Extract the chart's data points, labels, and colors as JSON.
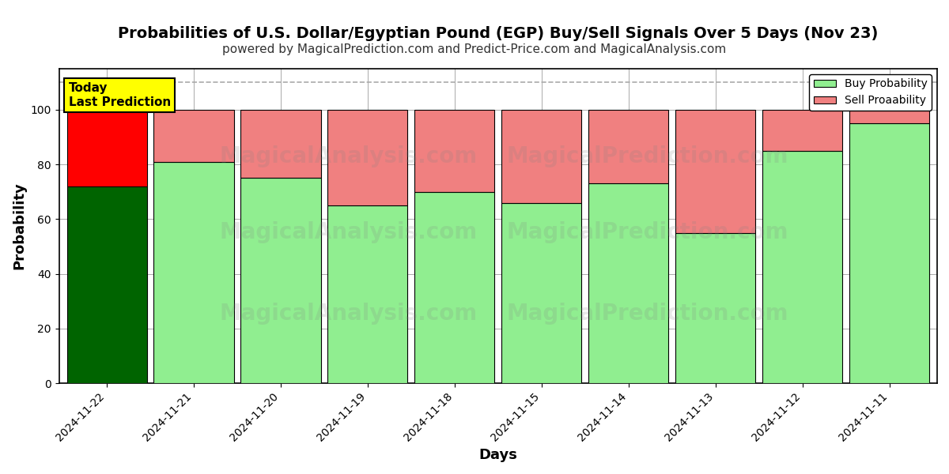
{
  "title": "Probabilities of U.S. Dollar/Egyptian Pound (EGP) Buy/Sell Signals Over 5 Days (Nov 23)",
  "subtitle": "powered by MagicalPrediction.com and Predict-Price.com and MagicalAnalysis.com",
  "xlabel": "Days",
  "ylabel": "Probability",
  "dates": [
    "2024-11-22",
    "2024-11-21",
    "2024-11-20",
    "2024-11-19",
    "2024-11-18",
    "2024-11-15",
    "2024-11-14",
    "2024-11-13",
    "2024-11-12",
    "2024-11-11"
  ],
  "buy_values": [
    72,
    81,
    75,
    65,
    70,
    66,
    73,
    55,
    85,
    95
  ],
  "sell_values": [
    28,
    19,
    25,
    35,
    30,
    34,
    27,
    45,
    15,
    5
  ],
  "today_buy_color": "#006400",
  "today_sell_color": "#FF0000",
  "buy_color": "#90EE90",
  "sell_color": "#F08080",
  "today_annotation": "Today\nLast Prediction",
  "today_annotation_bg": "#FFFF00",
  "ylim": [
    0,
    115
  ],
  "yticks": [
    0,
    20,
    40,
    60,
    80,
    100
  ],
  "dashed_line_y": 110,
  "watermark_top1": "MagicalAnalysis.com",
  "watermark_top2": "MagicalPrediction.com",
  "watermark_bot1": "MagicalAnalysis.com",
  "watermark_bot2": "MagicalPrediction.com",
  "legend_buy_label": "Buy Probability",
  "legend_sell_label": "Sell Proaability",
  "bar_edge_color": "#000000",
  "grid_color": "#aaaaaa",
  "background_color": "#ffffff",
  "title_fontsize": 14,
  "subtitle_fontsize": 11,
  "bar_width": 0.92
}
